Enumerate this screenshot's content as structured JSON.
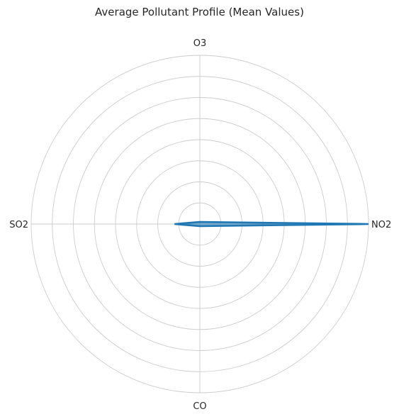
{
  "chart_data": {
    "type": "radar",
    "title": "Average Pollutant Profile (Mean Values)",
    "axes": [
      "NO2",
      "O3",
      "SO2",
      "CO"
    ],
    "series": [
      {
        "values": [
          8.0,
          0.1,
          1.2,
          0.1
        ],
        "color": "#1f77b4"
      }
    ],
    "radial_range": [
      0,
      8.0
    ],
    "radial_ring_count": 8,
    "radial_tick_labels_shown": false,
    "grid": true,
    "legend": "none"
  }
}
